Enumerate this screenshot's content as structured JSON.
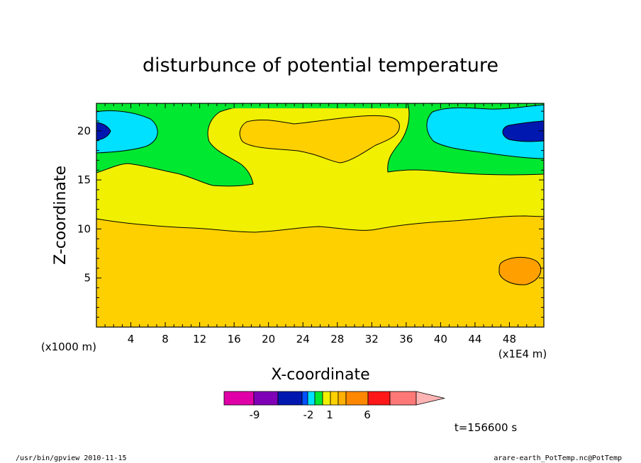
{
  "chart_data": {
    "type": "heatmap",
    "subtype": "filled-contour",
    "title": "disturbunce of potential temperature",
    "xlabel": "X-coordinate",
    "ylabel": "Z-coordinate",
    "x_unit_label": "(x1000 m)",
    "x_unit_label_right": "(x1E4 m)",
    "xlim": [
      0,
      52
    ],
    "ylim": [
      0,
      22.8
    ],
    "x_ticks": [
      4,
      8,
      12,
      16,
      20,
      24,
      28,
      32,
      36,
      40,
      44,
      48
    ],
    "y_ticks": [
      5,
      10,
      15,
      20
    ],
    "time_label": "t=156600 s",
    "colorbar": {
      "colors": [
        "#e000a8",
        "#8000b8",
        "#0018b0",
        "#0050ff",
        "#00e0ff",
        "#00e830",
        "#f0f000",
        "#ffd000",
        "#ffb000",
        "#ff8800",
        "#ff1818",
        "#ff7878",
        "#ffb4b4"
      ],
      "tick_labels": [
        "-9",
        "-2",
        "1",
        "6"
      ],
      "extend": "max"
    },
    "regions": [
      {
        "name": "background-lowest",
        "color": "#ffd000"
      },
      {
        "name": "yellow-band",
        "color": "#f0f000"
      },
      {
        "name": "green-left",
        "color": "#00e830"
      },
      {
        "name": "green-right",
        "color": "#00e830"
      },
      {
        "name": "green-topstrip",
        "color": "#00e830"
      },
      {
        "name": "cyan-left",
        "color": "#00e0ff"
      },
      {
        "name": "cyan-right",
        "color": "#00e0ff"
      },
      {
        "name": "blue-left",
        "color": "#0018b0"
      },
      {
        "name": "blue-right",
        "color": "#0018b0"
      },
      {
        "name": "orange-upper",
        "color": "#ffd000"
      },
      {
        "name": "orange-lower",
        "color": "#ffa000"
      }
    ]
  },
  "footer": {
    "left": "/usr/bin/gpview  2010-11-15",
    "right": "arare-earth_PotTemp.nc@PotTemp"
  }
}
